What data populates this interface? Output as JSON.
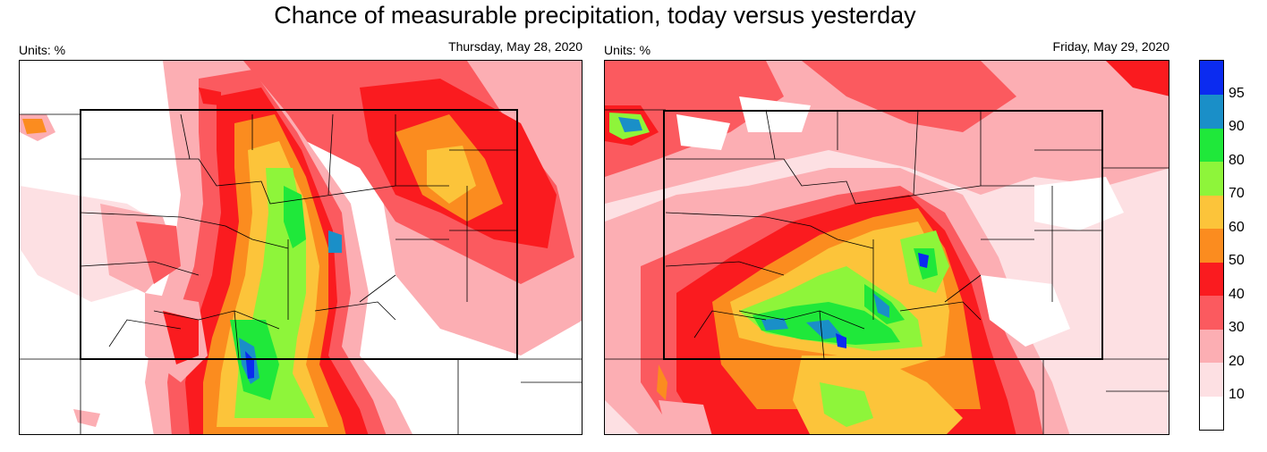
{
  "title": "Chance of measurable precipitation, today versus yesterday",
  "panels": [
    {
      "units": "Units: %",
      "date": "Thursday, May 28, 2020"
    },
    {
      "units": "Units: %",
      "date": "Friday, May 29, 2020"
    }
  ],
  "legend": {
    "labels": [
      "95",
      "90",
      "80",
      "70",
      "60",
      "50",
      "40",
      "30",
      "20",
      "10"
    ],
    "colors": [
      "#ffffff",
      "#fde0e3",
      "#fcaeb3",
      "#fb5a5f",
      "#fa1b1f",
      "#fb8c1f",
      "#fcc43a",
      "#8ef53a",
      "#1fe83a",
      "#1a8fc8",
      "#0b2bf0"
    ]
  },
  "colors": {
    "white": "#ffffff",
    "pink_light": "#fde0e3",
    "pink": "#fcaeb3",
    "red_light": "#fb5a5f",
    "red": "#fa1b1f",
    "orange": "#fb8c1f",
    "yellow": "#fcc43a",
    "lime": "#8ef53a",
    "green": "#1fe83a",
    "teal": "#1a8fc8",
    "blue": "#0b2bf0"
  }
}
